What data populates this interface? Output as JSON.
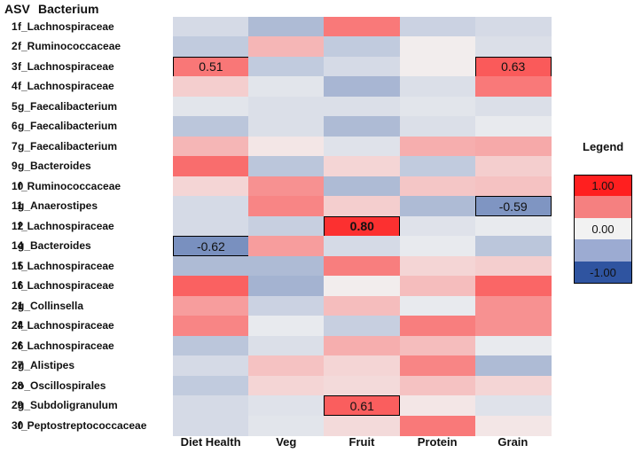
{
  "headers": {
    "asv": "ASV",
    "bacterium": "Bacterium"
  },
  "chart_data": {
    "type": "heatmap",
    "title": "",
    "columns": [
      "Diet Health",
      "Veg",
      "Fruit",
      "Protein",
      "Grain"
    ],
    "rows": [
      {
        "asv": "1",
        "bacterium": "f_Lachnospiraceae",
        "values": [
          -0.15,
          -0.35,
          0.5,
          -0.2,
          -0.15
        ]
      },
      {
        "asv": "2",
        "bacterium": "f_Ruminococcaceae",
        "values": [
          -0.25,
          0.25,
          -0.25,
          0.02,
          -0.12
        ]
      },
      {
        "asv": "3",
        "bacterium": "f_Lachnospiraceae",
        "values": [
          0.51,
          -0.25,
          -0.15,
          0.02,
          0.63
        ]
      },
      {
        "asv": "4",
        "bacterium": "f_Lachnospiraceae",
        "values": [
          0.15,
          -0.08,
          -0.38,
          -0.12,
          0.5
        ]
      },
      {
        "asv": "5",
        "bacterium": "g_Faecalibacterium",
        "values": [
          -0.08,
          -0.12,
          -0.12,
          -0.08,
          -0.12
        ]
      },
      {
        "asv": "6",
        "bacterium": "g_Faecalibacterium",
        "values": [
          -0.28,
          -0.12,
          -0.35,
          -0.12,
          -0.05
        ]
      },
      {
        "asv": "7",
        "bacterium": "g_Faecalibacterium",
        "values": [
          0.25,
          0.05,
          -0.1,
          0.28,
          0.3
        ]
      },
      {
        "asv": "9",
        "bacterium": "g_Bacteroides",
        "values": [
          0.55,
          -0.28,
          0.12,
          -0.25,
          0.15
        ]
      },
      {
        "asv": "10",
        "bacterium": "f_Ruminococcaceae",
        "values": [
          0.12,
          0.4,
          -0.35,
          0.18,
          0.2
        ]
      },
      {
        "asv": "11",
        "bacterium": "g_Anaerostipes",
        "values": [
          -0.15,
          0.45,
          0.15,
          -0.35,
          -0.59
        ]
      },
      {
        "asv": "12",
        "bacterium": "f_Lachnospiraceae",
        "values": [
          -0.15,
          -0.22,
          0.8,
          -0.1,
          -0.05
        ]
      },
      {
        "asv": "14",
        "bacterium": "g_Bacteroides",
        "values": [
          -0.62,
          0.35,
          -0.15,
          -0.05,
          -0.28
        ]
      },
      {
        "asv": "15",
        "bacterium": "f_Lachnospiraceae",
        "values": [
          -0.35,
          -0.35,
          0.48,
          0.12,
          0.15
        ]
      },
      {
        "asv": "16",
        "bacterium": "f_Lachnospiraceae",
        "values": [
          0.6,
          -0.4,
          0.02,
          0.22,
          0.58
        ]
      },
      {
        "asv": "21",
        "bacterium": "g_Collinsella",
        "values": [
          0.35,
          -0.2,
          0.22,
          -0.05,
          0.4
        ]
      },
      {
        "asv": "24",
        "bacterium": "f_Lachnospiraceae",
        "values": [
          0.45,
          -0.05,
          -0.22,
          0.48,
          0.4
        ]
      },
      {
        "asv": "26",
        "bacterium": "f_Lachnospiraceae",
        "values": [
          -0.28,
          -0.12,
          0.28,
          0.22,
          -0.05
        ]
      },
      {
        "asv": "27",
        "bacterium": "g_Alistipes",
        "values": [
          -0.15,
          0.2,
          0.12,
          0.45,
          -0.35
        ]
      },
      {
        "asv": "28",
        "bacterium": "o_Oscillospirales",
        "values": [
          -0.25,
          0.12,
          0.1,
          0.2,
          0.12
        ]
      },
      {
        "asv": "29",
        "bacterium": "g_Subdoligranulum",
        "values": [
          -0.15,
          -0.1,
          0.61,
          0.05,
          -0.1
        ]
      },
      {
        "asv": "30",
        "bacterium": "f_Peptostreptococcaceae",
        "values": [
          -0.15,
          -0.08,
          0.1,
          0.5,
          0.05
        ]
      }
    ],
    "annotations": [
      {
        "row": 2,
        "col": 0,
        "label": "0.51",
        "bold": false
      },
      {
        "row": 2,
        "col": 4,
        "label": "0.63",
        "bold": false
      },
      {
        "row": 9,
        "col": 4,
        "label": "-0.59",
        "bold": false
      },
      {
        "row": 10,
        "col": 2,
        "label": "0.80",
        "bold": true
      },
      {
        "row": 11,
        "col": 0,
        "label": "-0.62",
        "bold": false
      },
      {
        "row": 19,
        "col": 2,
        "label": "0.61",
        "bold": false
      }
    ],
    "value_range": [
      -1.0,
      1.0
    ],
    "colors": {
      "negative": "#2f54a0",
      "neutral": "#f2f2f2",
      "positive": "#ff0000"
    },
    "legend": {
      "title": "Legend",
      "entries": [
        {
          "label": "1.00",
          "value": 1.0,
          "color": "#ff1f1f"
        },
        {
          "label": "",
          "value": 0.5,
          "color": "#f58080"
        },
        {
          "label": "0.00",
          "value": 0.0,
          "color": "#f2f2f2"
        },
        {
          "label": "",
          "value": -0.5,
          "color": "#9cabd2"
        },
        {
          "label": "-1.00",
          "value": -1.0,
          "color": "#2f54a0"
        }
      ]
    }
  }
}
